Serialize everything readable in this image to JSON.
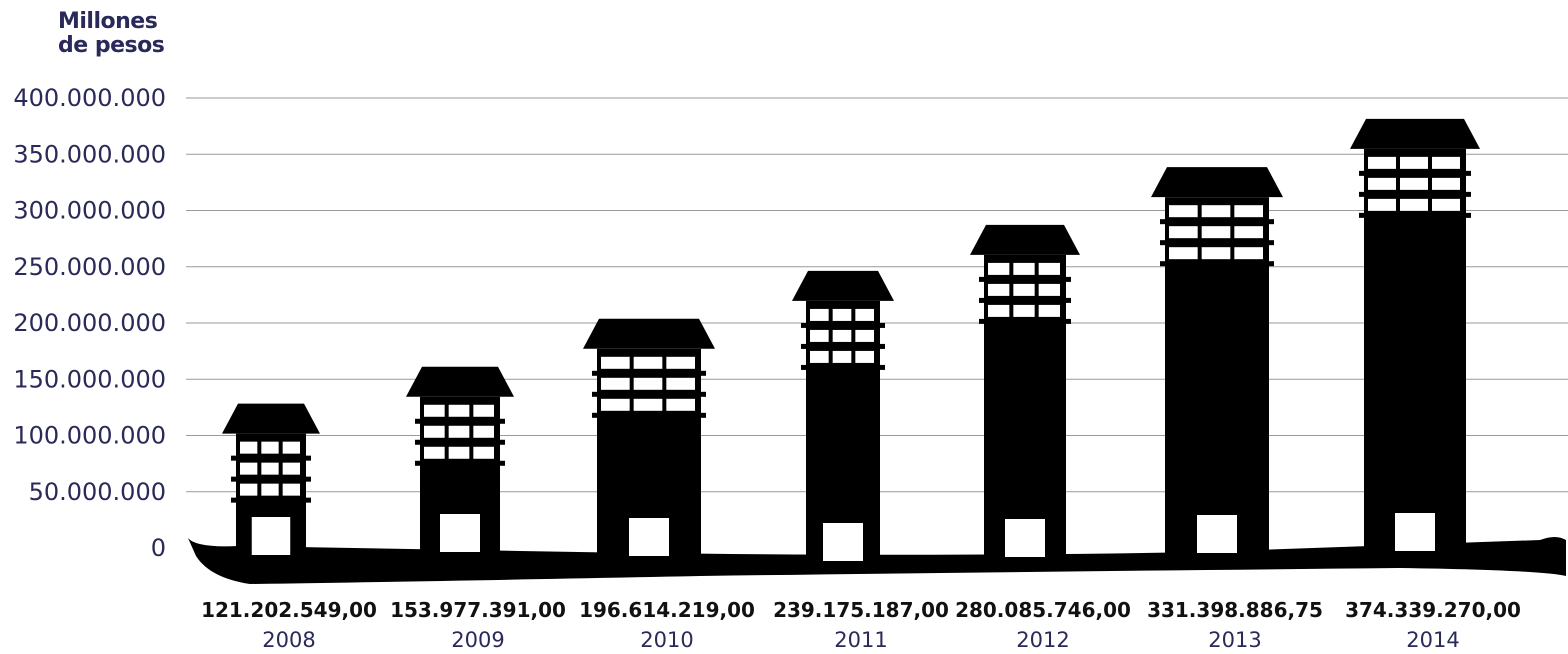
{
  "chart_data": {
    "type": "bar",
    "ylabel": "Millones de pesos",
    "ylabel_lines": [
      "Millones",
      "de pesos"
    ],
    "yticks": [
      0,
      50000000,
      100000000,
      150000000,
      200000000,
      250000000,
      300000000,
      350000000,
      400000000
    ],
    "ytick_labels": [
      "0",
      "50.000.000",
      "100.000.000",
      "150.000.000",
      "200.000.000",
      "250.000.000",
      "300.000.000",
      "350.000.000",
      "400.000.000"
    ],
    "ylim": [
      0,
      400000000
    ],
    "categories": [
      "2008",
      "2009",
      "2010",
      "2011",
      "2012",
      "2013",
      "2014"
    ],
    "values": [
      121202549.0,
      153977391.0,
      196614219.0,
      239175187.0,
      280085746.0,
      331398886.75,
      374339270.0
    ],
    "value_labels": [
      "121.202.549,00",
      "153.977.391,00",
      "196.614.219,00",
      "239.175.187,00",
      "280.085.746,00",
      "331.398.886,75",
      "374.339.270,00"
    ],
    "grid": true,
    "text_color": "#2a2a5a",
    "bar_color": "#000000",
    "grid_color": "#9a9a9a"
  }
}
